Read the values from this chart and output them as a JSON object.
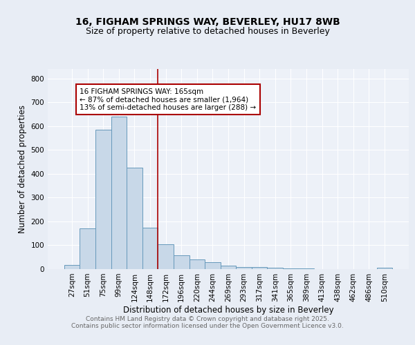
{
  "title": "16, FIGHAM SPRINGS WAY, BEVERLEY, HU17 8WB",
  "subtitle": "Size of property relative to detached houses in Beverley",
  "xlabel": "Distribution of detached houses by size in Beverley",
  "ylabel": "Number of detached properties",
  "categories": [
    "27sqm",
    "51sqm",
    "75sqm",
    "99sqm",
    "124sqm",
    "148sqm",
    "172sqm",
    "196sqm",
    "220sqm",
    "244sqm",
    "269sqm",
    "293sqm",
    "317sqm",
    "341sqm",
    "365sqm",
    "389sqm",
    "413sqm",
    "438sqm",
    "462sqm",
    "486sqm",
    "510sqm"
  ],
  "bar_heights": [
    18,
    170,
    585,
    640,
    425,
    175,
    105,
    57,
    40,
    30,
    15,
    10,
    8,
    6,
    4,
    2,
    1,
    0,
    0,
    0,
    5
  ],
  "bar_color": "#c8d8e8",
  "bar_edge_color": "#6699bb",
  "vline_x_index": 6,
  "vline_color": "#aa0000",
  "annotation_text": "16 FIGHAM SPRINGS WAY: 165sqm\n← 87% of detached houses are smaller (1,964)\n13% of semi-detached houses are larger (288) →",
  "annotation_box_color": "#ffffff",
  "annotation_box_edge": "#aa0000",
  "ylim": [
    0,
    840
  ],
  "yticks": [
    0,
    100,
    200,
    300,
    400,
    500,
    600,
    700,
    800
  ],
  "footer_line1": "Contains HM Land Registry data © Crown copyright and database right 2025.",
  "footer_line2": "Contains public sector information licensed under the Open Government Licence v3.0.",
  "bg_color": "#e8edf5",
  "plot_bg_color": "#edf1f8",
  "title_fontsize": 10,
  "subtitle_fontsize": 9,
  "axis_label_fontsize": 8.5,
  "tick_fontsize": 7.5,
  "annotation_fontsize": 7.5,
  "footer_fontsize": 6.5
}
